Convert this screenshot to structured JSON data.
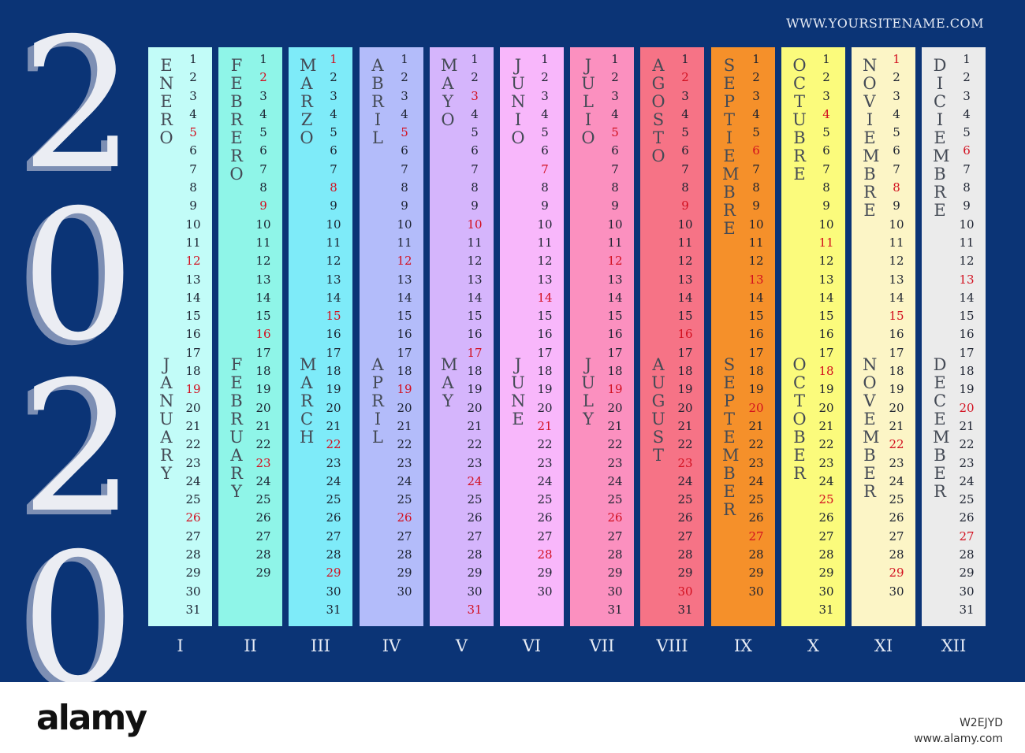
{
  "year_digits": [
    "2",
    "0",
    "2",
    "0"
  ],
  "site": "WWW.YOURSITENAME.COM",
  "months": [
    {
      "es": "ENERO",
      "en": "JANUARY",
      "roman": "I",
      "color": "#c2fcf8",
      "days": 31,
      "holidays": [
        5,
        12,
        19,
        26
      ]
    },
    {
      "es": "FEBRERO",
      "en": "FEBRUARY",
      "roman": "II",
      "color": "#8ff5e8",
      "days": 29,
      "holidays": [
        2,
        9,
        16,
        23
      ]
    },
    {
      "es": "MARZO",
      "en": "MARCH",
      "roman": "III",
      "color": "#7eebf9",
      "days": 31,
      "holidays": [
        1,
        8,
        15,
        22,
        29
      ]
    },
    {
      "es": "ABRIL",
      "en": "APRIL",
      "roman": "IV",
      "color": "#b3bcfa",
      "days": 30,
      "holidays": [
        5,
        12,
        19,
        26
      ]
    },
    {
      "es": "MAYO",
      "en": "MAY",
      "roman": "V",
      "color": "#d5b5fc",
      "days": 31,
      "holidays": [
        3,
        10,
        17,
        24,
        31
      ]
    },
    {
      "es": "JUNIO",
      "en": "JUNE",
      "roman": "VI",
      "color": "#f8b7fb",
      "days": 30,
      "holidays": [
        7,
        14,
        21,
        28
      ]
    },
    {
      "es": "JULIO",
      "en": "JULY",
      "roman": "VII",
      "color": "#fb90bf",
      "days": 31,
      "holidays": [
        5,
        12,
        19,
        26
      ]
    },
    {
      "es": "AGOSTO",
      "en": "AUGUST",
      "roman": "VIII",
      "color": "#f67386",
      "days": 31,
      "holidays": [
        2,
        9,
        16,
        23,
        30
      ]
    },
    {
      "es": "SEPTIEMBRE",
      "en": "SEPTEMBER",
      "roman": "IX",
      "color": "#f5902a",
      "days": 30,
      "holidays": [
        6,
        13,
        20,
        27
      ]
    },
    {
      "es": "OCTUBRE",
      "en": "OCTOBER",
      "roman": "X",
      "color": "#fbfb7c",
      "days": 31,
      "holidays": [
        4,
        11,
        18,
        25
      ]
    },
    {
      "es": "NOVIEMBRE",
      "en": "NOVEMBER",
      "roman": "XI",
      "color": "#fcf5c6",
      "days": 30,
      "holidays": [
        1,
        8,
        15,
        22,
        29
      ]
    },
    {
      "es": "DICIEMBRE",
      "en": "DECEMBER",
      "roman": "XII",
      "color": "#ebebeb",
      "days": 31,
      "holidays": [
        6,
        13,
        20,
        27
      ]
    }
  ],
  "footer": {
    "brand": "alamy",
    "code": "W2EJYD",
    "url": "www.alamy.com"
  }
}
